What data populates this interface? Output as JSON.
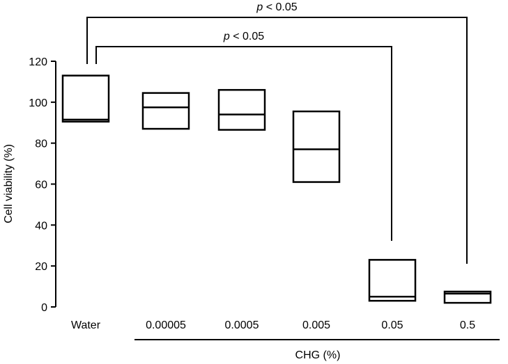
{
  "chart_data": {
    "type": "box",
    "title": "",
    "ylabel": "Cell viability (%)",
    "xlabel": "CHG (%)",
    "ylim": [
      0,
      120
    ],
    "yticks": [
      0,
      20,
      40,
      60,
      80,
      100,
      120
    ],
    "categories": [
      "Water",
      "0.00005",
      "0.0005",
      "0.005",
      "0.05",
      "0.5"
    ],
    "boxes": [
      {
        "category": "Water",
        "low": 90.5,
        "median": 91.5,
        "high": 113
      },
      {
        "category": "0.00005",
        "low": 87,
        "median": 97.5,
        "high": 104.5
      },
      {
        "category": "0.0005",
        "low": 86.5,
        "median": 94,
        "high": 106
      },
      {
        "category": "0.005",
        "low": 61,
        "median": 77,
        "high": 95.5
      },
      {
        "category": "0.05",
        "low": 3,
        "median": 5,
        "high": 23
      },
      {
        "category": "0.5",
        "low": 2,
        "median": 6.5,
        "high": 7.5
      }
    ],
    "group_label": "CHG (%)",
    "group_categories": [
      "0.00005",
      "0.0005",
      "0.005",
      "0.05",
      "0.5"
    ],
    "significance": [
      {
        "from": "Water",
        "to": "0.5",
        "label": "p < 0.05"
      },
      {
        "from": "Water",
        "to": "0.05",
        "label": "p < 0.05"
      }
    ]
  }
}
